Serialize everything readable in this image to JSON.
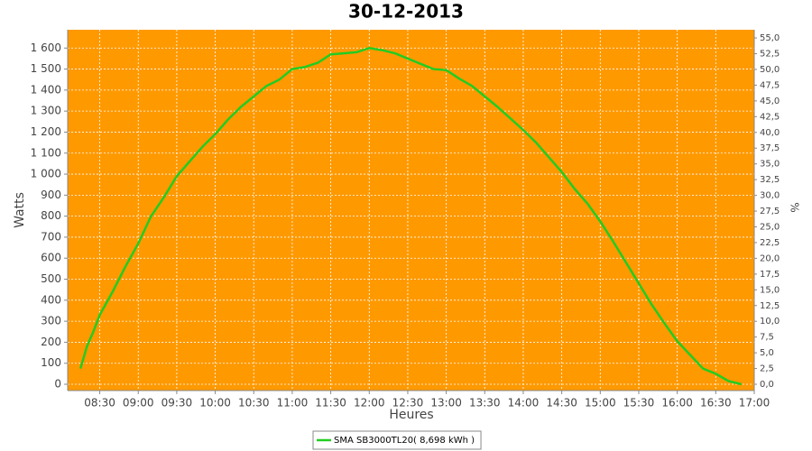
{
  "chart_data": {
    "type": "line",
    "title": "30-12-2013",
    "xlabel": "Heures",
    "ylabel": "Watts",
    "y2label": "%",
    "x": [
      "08:15",
      "08:20",
      "08:25",
      "08:30",
      "08:40",
      "08:50",
      "09:00",
      "09:10",
      "09:20",
      "09:30",
      "09:40",
      "09:50",
      "10:00",
      "10:10",
      "10:20",
      "10:30",
      "10:40",
      "10:50",
      "11:00",
      "11:10",
      "11:20",
      "11:30",
      "11:40",
      "11:50",
      "12:00",
      "12:10",
      "12:20",
      "12:30",
      "12:40",
      "12:50",
      "13:00",
      "13:10",
      "13:20",
      "13:30",
      "13:40",
      "13:50",
      "14:00",
      "14:10",
      "14:20",
      "14:30",
      "14:40",
      "14:50",
      "15:00",
      "15:10",
      "15:20",
      "15:30",
      "15:40",
      "15:50",
      "16:00",
      "16:10",
      "16:20",
      "16:30",
      "16:40",
      "16:50"
    ],
    "series": [
      {
        "name": "SMA SB3000TL20( 8,698 kWh )",
        "color": "#22cc22",
        "values": [
          75,
          180,
          250,
          330,
          440,
          560,
          670,
          800,
          890,
          990,
          1060,
          1130,
          1190,
          1260,
          1320,
          1370,
          1420,
          1450,
          1500,
          1510,
          1530,
          1570,
          1575,
          1580,
          1600,
          1590,
          1575,
          1550,
          1525,
          1500,
          1495,
          1455,
          1420,
          1370,
          1320,
          1265,
          1210,
          1150,
          1080,
          1010,
          930,
          860,
          775,
          680,
          580,
          480,
          380,
          290,
          205,
          140,
          75,
          50,
          15,
          0
        ]
      }
    ],
    "xlim": [
      "08:05",
      "17:00"
    ],
    "xticks": [
      "08:30",
      "09:00",
      "09:30",
      "10:00",
      "10:30",
      "11:00",
      "11:30",
      "12:00",
      "12:30",
      "13:00",
      "13:30",
      "14:00",
      "14:30",
      "15:00",
      "15:30",
      "16:00",
      "16:30",
      "17:00"
    ],
    "ylim": [
      -30,
      1687
    ],
    "yticks": [
      0,
      100,
      200,
      300,
      400,
      500,
      600,
      700,
      800,
      900,
      {
        "value": 1000,
        "label": "1 000"
      },
      {
        "value": 1100,
        "label": "1 100"
      },
      {
        "value": 1200,
        "label": "1 200"
      },
      {
        "value": 1300,
        "label": "1 300"
      },
      {
        "value": 1400,
        "label": "1 400"
      },
      {
        "value": 1500,
        "label": "1 500"
      },
      {
        "value": 1600,
        "label": "1 600"
      }
    ],
    "y2lim": [
      -1.0,
      56.3
    ],
    "y2ticks": [
      {
        "value": 0,
        "label": "0,0"
      },
      {
        "value": 2.5,
        "label": "2,5"
      },
      {
        "value": 5,
        "label": "5,0"
      },
      {
        "value": 7.5,
        "label": "7,5"
      },
      {
        "value": 10,
        "label": "10,0"
      },
      {
        "value": 12.5,
        "label": "12,5"
      },
      {
        "value": 15,
        "label": "15,0"
      },
      {
        "value": 17.5,
        "label": "17,5"
      },
      {
        "value": 20,
        "label": "20,0"
      },
      {
        "value": 22.5,
        "label": "22,5"
      },
      {
        "value": 25,
        "label": "25,0"
      },
      {
        "value": 27.5,
        "label": "27,5"
      },
      {
        "value": 30,
        "label": "30,0"
      },
      {
        "value": 32.5,
        "label": "32,5"
      },
      {
        "value": 35,
        "label": "35,0"
      },
      {
        "value": 37.5,
        "label": "37,5"
      },
      {
        "value": 40,
        "label": "40,0"
      },
      {
        "value": 42.5,
        "label": "42,5"
      },
      {
        "value": 45,
        "label": "45,0"
      },
      {
        "value": 47.5,
        "label": "47,5"
      },
      {
        "value": 50,
        "label": "50,0"
      },
      {
        "value": 52.5,
        "label": "52,5"
      },
      {
        "value": 55,
        "label": "55,0"
      }
    ],
    "grid": true,
    "background": "#ff9900",
    "legend": "bottom"
  }
}
